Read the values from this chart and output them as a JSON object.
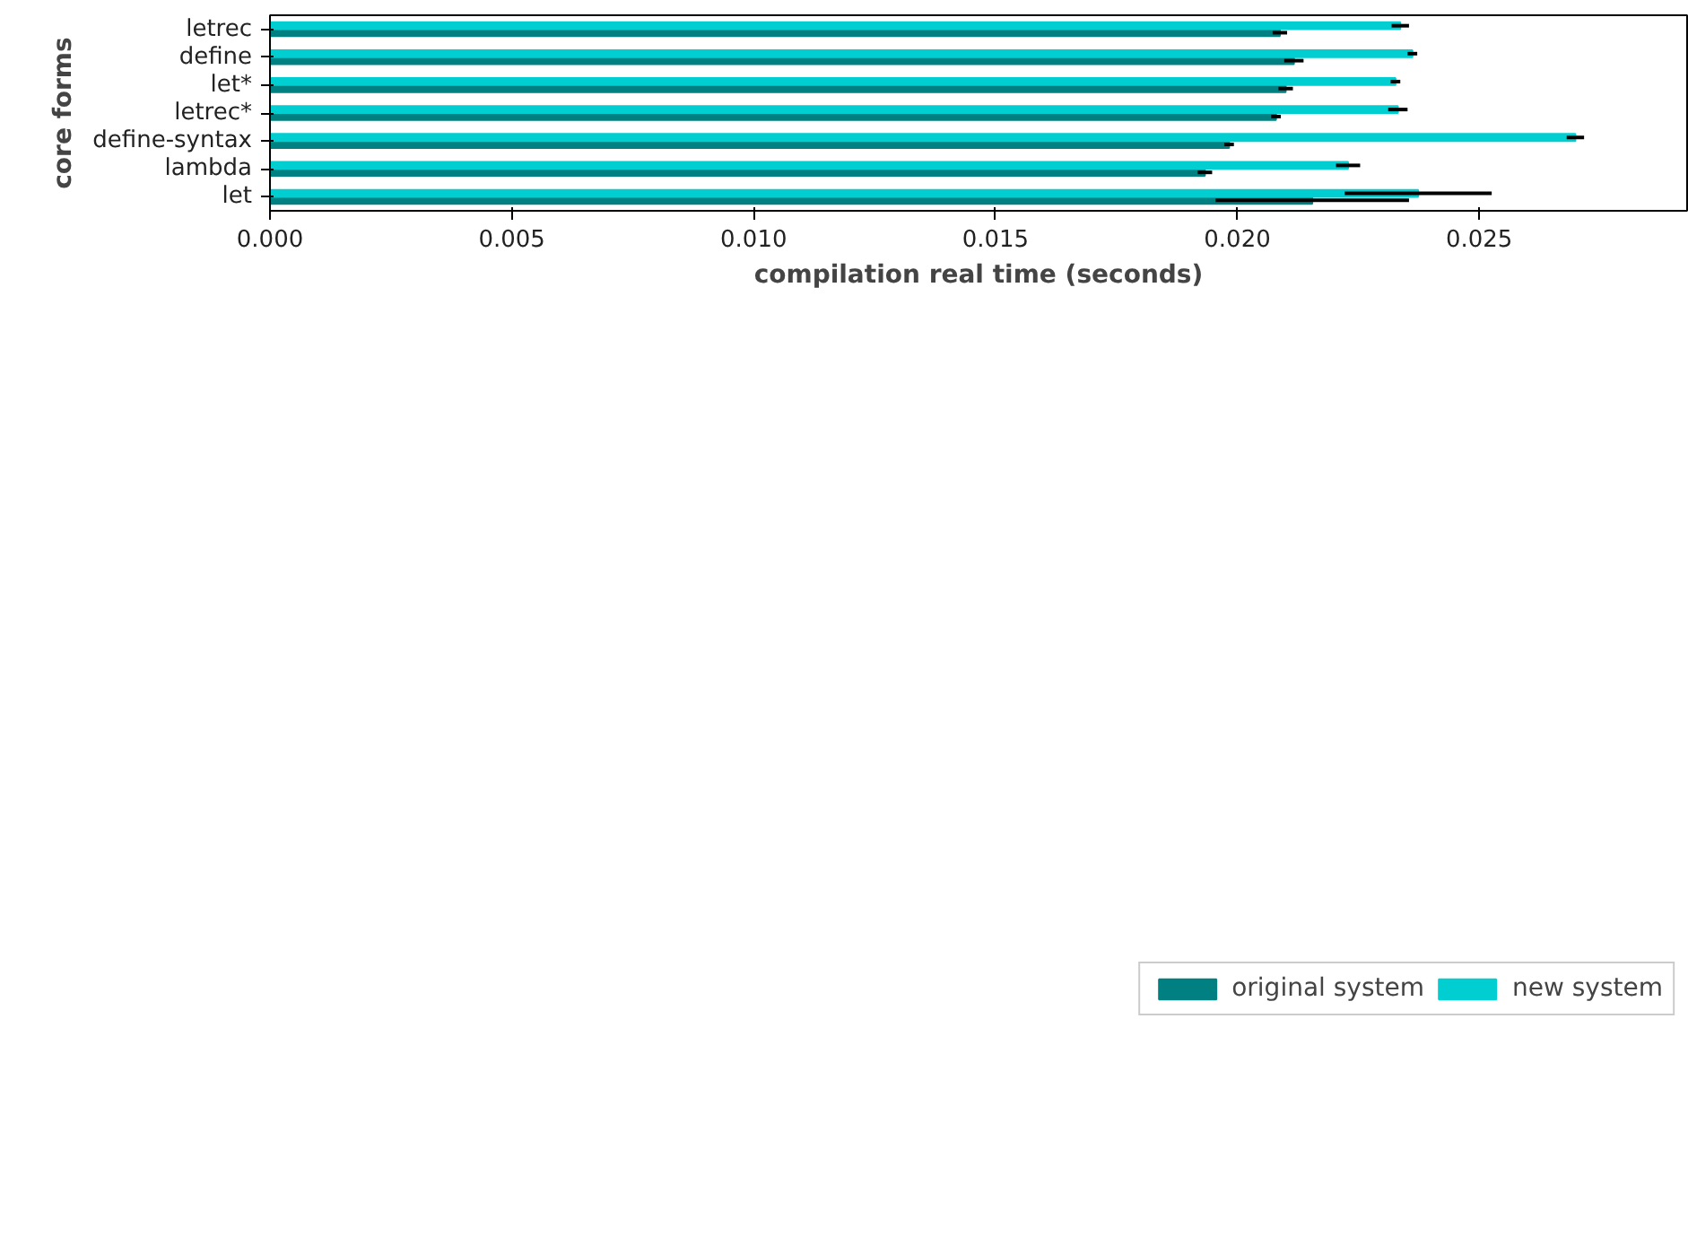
{
  "chart_data": {
    "type": "bar",
    "orientation": "horizontal",
    "xlabel": "compilation real time (seconds)",
    "ylabel": "core forms",
    "categories": [
      "letrec",
      "define",
      "let*",
      "letrec*",
      "define-syntax",
      "lambda",
      "let"
    ],
    "series": [
      {
        "name": "original system",
        "color": "#008080",
        "values": [
          0.02088,
          0.02117,
          0.021,
          0.0208,
          0.01983,
          0.01933,
          0.02155
        ],
        "errors": [
          0.00015,
          0.0002,
          0.00015,
          0.0001,
          0.0001,
          0.00015,
          0.002
        ]
      },
      {
        "name": "new system",
        "color": "#00ced1",
        "values": [
          0.02337,
          0.02362,
          0.02327,
          0.02332,
          0.02699,
          0.02229,
          0.02374
        ],
        "errors": [
          0.00018,
          0.0001,
          0.0001,
          0.0002,
          0.00018,
          0.00025,
          0.00152
        ]
      }
    ],
    "xlim": [
      0,
      0.0293
    ],
    "xticks": [
      {
        "value": 0,
        "label": "0.000"
      },
      {
        "value": 0.005,
        "label": "0.005"
      },
      {
        "value": 0.01,
        "label": "0.010"
      },
      {
        "value": 0.015,
        "label": "0.015"
      },
      {
        "value": 0.02,
        "label": "0.020"
      },
      {
        "value": 0.025,
        "label": "0.025"
      }
    ],
    "grid": false,
    "legend": "bottom right"
  }
}
